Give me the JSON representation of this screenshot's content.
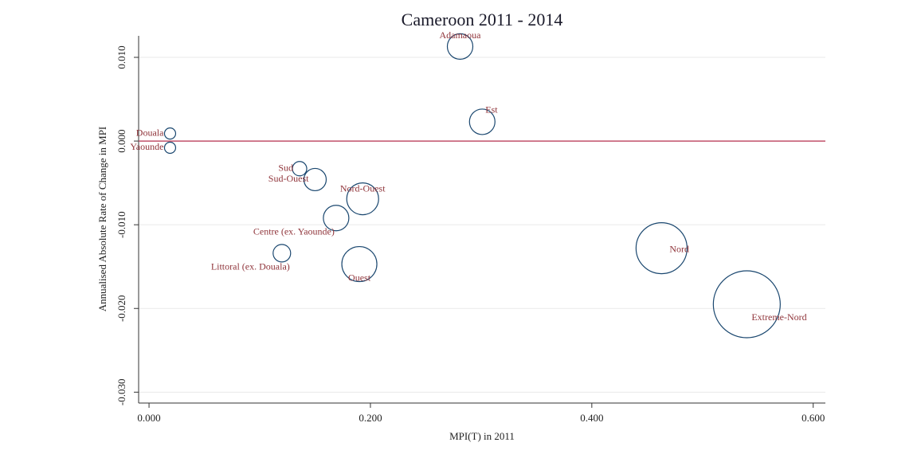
{
  "chart_data": {
    "type": "scatter",
    "title": "Cameroon 2011 - 2014",
    "x_label": "MPI(T) in 2011",
    "y_label": "Annualised Absolute Rate of Change in MPI",
    "labels": [
      "Adamaoua",
      "Est",
      "Douala",
      "Yaounde",
      "Sud",
      "Sud-Ouest",
      "Nord-Ouest",
      "Centre (ex. Yaounde)",
      "Littoral (ex. Douala)",
      "Ouest",
      "Nord",
      "Extreme-Nord"
    ],
    "x": [
      0.281,
      0.301,
      0.019,
      0.019,
      0.136,
      0.15,
      0.193,
      0.169,
      0.12,
      0.19,
      0.463,
      0.54
    ],
    "values": [
      0.0113,
      0.0023,
      0.0009,
      -0.0008,
      -0.0033,
      -0.0046,
      -0.0069,
      -0.0092,
      -0.0134,
      -0.0147,
      -0.0128,
      -0.0195
    ],
    "sizes": [
      2.56,
      2.56,
      0.49,
      0.49,
      0.81,
      1.96,
      4.0,
      2.56,
      1.21,
      4.84,
      10.24,
      17.64
    ],
    "color": "#1a476f",
    "label_color": "#90353b",
    "reference_line": {
      "value": 0,
      "color": "#c0506a"
    },
    "xlim": [
      -0.0094,
      0.611
    ],
    "ylim": [
      -0.0313,
      0.01257
    ],
    "xticks": [
      {
        "value": 0,
        "label": "0.000"
      },
      {
        "value": 0.2,
        "label": "0.200"
      },
      {
        "value": 0.4,
        "label": "0.400"
      },
      {
        "value": 0.6,
        "label": "0.600"
      }
    ],
    "yticks": [
      {
        "value": 0.01,
        "label": "0.010"
      },
      {
        "value": 0,
        "label": "0.000"
      },
      {
        "value": -0.01,
        "label": "-0.010"
      },
      {
        "value": -0.02,
        "label": "-0.020"
      },
      {
        "value": -0.03,
        "label": "-0.030"
      }
    ],
    "grid": true
  }
}
